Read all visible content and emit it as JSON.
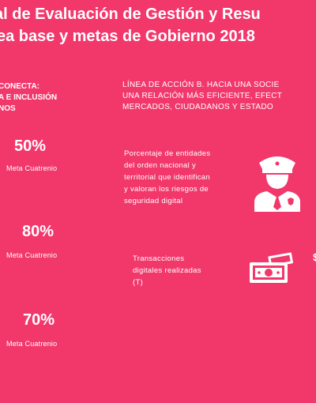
{
  "title": {
    "line1": "al de Evaluación de Gestión y Resu",
    "line2": "ea base y metas de Gobierno 2018"
  },
  "left_column": {
    "heading": [
      "CONECTA:",
      "A E INCLUSIÓN",
      "NOS"
    ],
    "items": [
      {
        "value": "50%",
        "label": "Meta Cuatrenio"
      },
      {
        "value": "80%",
        "label": "Meta Cuatrenio"
      },
      {
        "value": "70%",
        "label": "Meta Cuatrenio"
      }
    ]
  },
  "right_column": {
    "heading": [
      "LÍNEA DE ACCIÓN B. HACIA UNA SOCIE",
      "UNA RELACIÓN MÁS EFICIENTE, EFECT",
      "MERCADOS, CIUDADANOS Y ESTADO"
    ],
    "indicators": [
      {
        "lines": [
          "Porcentaje de entidades",
          "del orden nacional y",
          "territorial que identifican",
          "y valoran los riesgos de",
          "seguridad digital"
        ],
        "icon": "police-officer-icon"
      },
      {
        "lines": [
          "Transacciones",
          "digitales realizadas",
          "(T)"
        ],
        "icon": "money-bill-icon",
        "value_edge": "$"
      }
    ]
  },
  "colors": {
    "background": "#F2376B",
    "text": "#FFFFFF"
  }
}
